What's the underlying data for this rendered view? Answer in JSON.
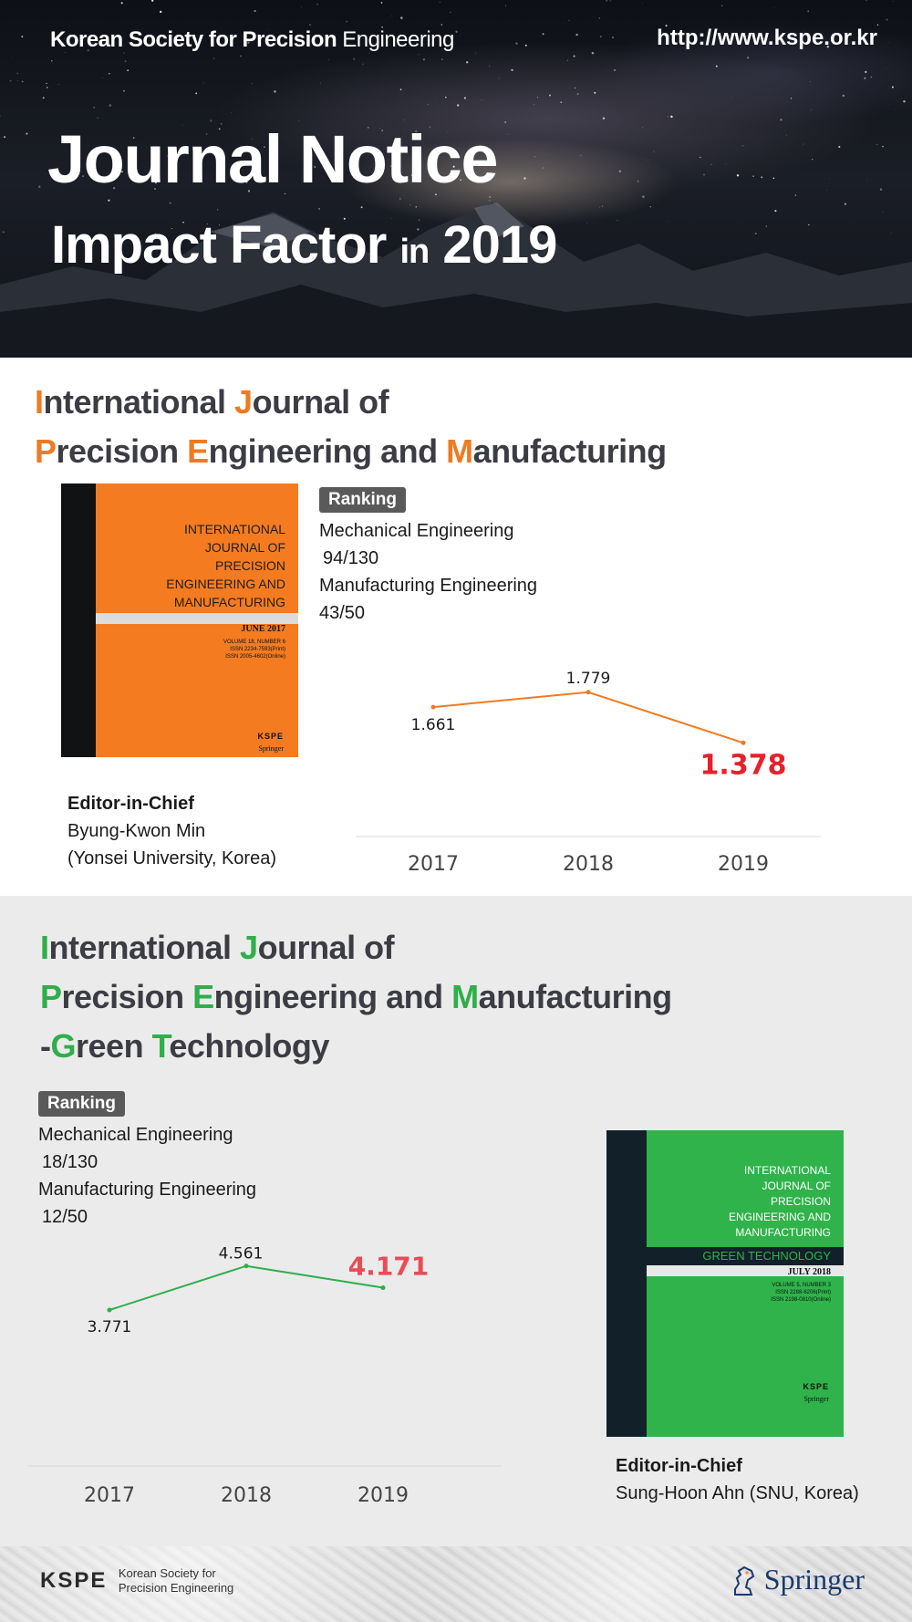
{
  "header": {
    "org_bold": "Korean Society for Precision",
    "org_light": "Engineering",
    "url": "http://www.kspe.or.kr",
    "title": "Journal Notice",
    "subtitle_a": "Impact Factor",
    "subtitle_in": "in",
    "subtitle_year": "2019"
  },
  "journal1": {
    "title": {
      "l1_a": "I",
      "l1_b": "nternational ",
      "l1_c": "J",
      "l1_d": "ournal of",
      "l2_a": "P",
      "l2_b": "recision ",
      "l2_c": "E",
      "l2_d": "ngineering and ",
      "l2_e": "M",
      "l2_f": "anufacturing"
    },
    "cover": {
      "line1": "INTERNATIONAL",
      "line2": "JOURNAL OF",
      "line3": "PRECISION",
      "line4": "ENGINEERING AND",
      "line5": "MANUFACTURING",
      "month": "JUNE 2017",
      "volume": "VOLUME 18, NUMBER 6",
      "issn1": "ISSN 2234-7593(Print)",
      "issn2": "ISSN 2005-4602(Online)",
      "logo": "KSPE",
      "publisher": "Springer",
      "color": "#f47b20"
    },
    "ranking": {
      "label": "Ranking",
      "line1": "Mechanical Engineering",
      "line2": "94/130",
      "line3": "Manufacturing Engineering",
      "line4": "43/50"
    },
    "editor": {
      "label": "Editor-in-Chief",
      "name": "Byung-Kwon Min",
      "affiliation": "(Yonsei University, Korea)"
    }
  },
  "journal2": {
    "title": {
      "l1_a": "I",
      "l1_b": "nternational ",
      "l1_c": "J",
      "l1_d": "ournal of",
      "l2_a": "P",
      "l2_b": "recision ",
      "l2_c": "E",
      "l2_d": "ngineering and ",
      "l2_e": "M",
      "l2_f": "anufacturing",
      "l3_a": "-",
      "l3_b": "G",
      "l3_c": "reen ",
      "l3_d": "T",
      "l3_e": "echnology"
    },
    "cover": {
      "line1": "INTERNATIONAL",
      "line2": "JOURNAL OF",
      "line3": "PRECISION",
      "line4": "ENGINEERING AND",
      "line5": "MANUFACTURING",
      "band": "GREEN TECHNOLOGY",
      "month": "JULY 2018",
      "volume": "VOLUME 5, NUMBER 3",
      "issn1": "ISSN 2288-6206(Print)",
      "issn2": "ISSN 2198-0810(Online)",
      "logo": "KSPE",
      "publisher": "Springer",
      "color": "#2fb34a"
    },
    "ranking": {
      "label": "Ranking",
      "line1": "Mechanical Engineering",
      "line2": "18/130",
      "line3": "Manufacturing Engineering",
      "line4": "12/50"
    },
    "editor": {
      "label": "Editor-in-Chief",
      "name": "Sung-Hoon Ahn (SNU, Korea)"
    }
  },
  "chart_data": [
    {
      "type": "line",
      "categories": [
        "2017",
        "2018",
        "2019"
      ],
      "values": [
        1.661,
        1.779,
        1.378
      ],
      "labels": [
        "1.661",
        "1.779",
        "1.378"
      ],
      "line_color": "#f07a22",
      "highlight_color": "#e8202a",
      "highlight_index": 2
    },
    {
      "type": "line",
      "categories": [
        "2017",
        "2018",
        "2019"
      ],
      "values": [
        3.771,
        4.561,
        4.171
      ],
      "labels": [
        "3.771",
        "4.561",
        "4.171"
      ],
      "line_color": "#2fae4a",
      "highlight_color": "#e84c58",
      "highlight_index": 2
    }
  ],
  "footer": {
    "kspe_mark": "KSPE",
    "kspe_line1": "Korean Society for",
    "kspe_line2": "Precision Engineering",
    "springer": "Springer"
  }
}
